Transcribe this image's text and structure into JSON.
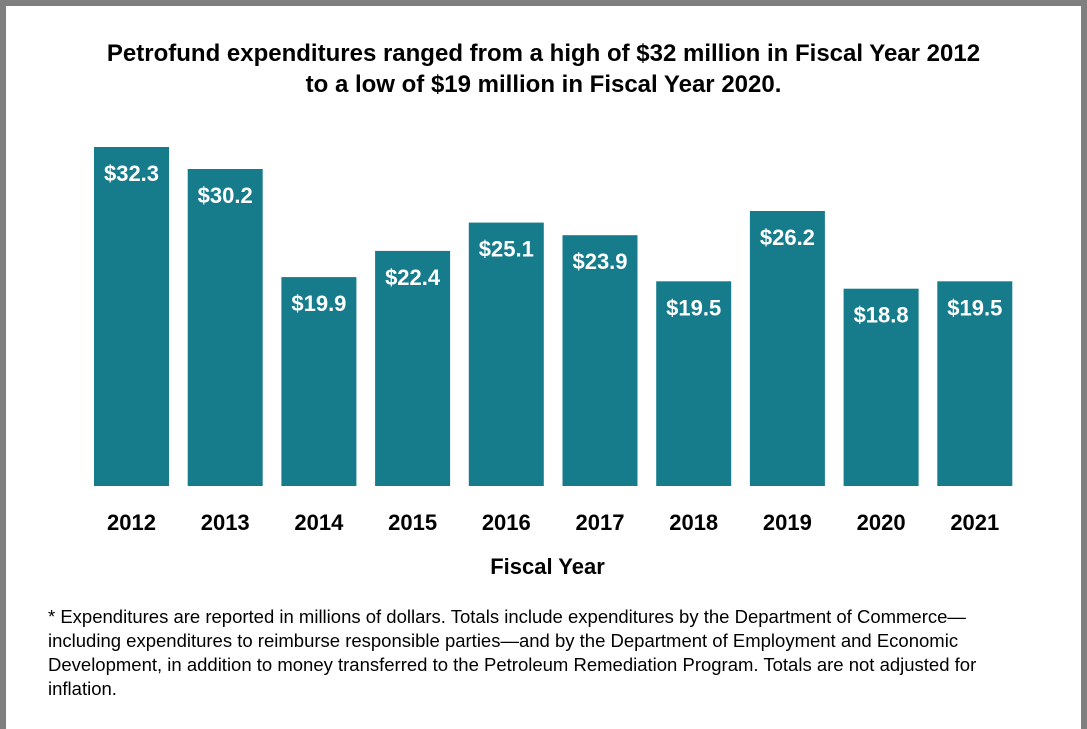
{
  "chart_data": {
    "type": "bar",
    "title_line1": "Petrofund expenditures ranged from a high of $32 million in Fiscal Year 2012",
    "title_line2": "to a low of $19 million in Fiscal Year 2020.",
    "xlabel": "Fiscal Year",
    "categories": [
      "2012",
      "2013",
      "2014",
      "2015",
      "2016",
      "2017",
      "2018",
      "2019",
      "2020",
      "2021"
    ],
    "values": [
      32.3,
      30.2,
      19.9,
      22.4,
      25.1,
      23.9,
      19.5,
      26.2,
      18.8,
      19.5
    ],
    "data_labels": [
      "$32.3",
      "$30.2",
      "$19.9",
      "$22.4",
      "$25.1",
      "$23.9",
      "$19.5",
      "$26.2",
      "$18.8",
      "$19.5"
    ],
    "ylim": [
      0,
      32.3
    ],
    "grid": false,
    "legend": "none",
    "bar_color": "#167c8c",
    "label_color": "#ffffff"
  },
  "footnote": "* Expenditures are reported in millions of dollars.  Totals include expenditures by the Department of Commerce—including expenditures to reimburse responsible parties—and by the Department of Employment and Economic Development, in addition to money transferred to the Petroleum Remediation Program.  Totals are not adjusted for inflation."
}
